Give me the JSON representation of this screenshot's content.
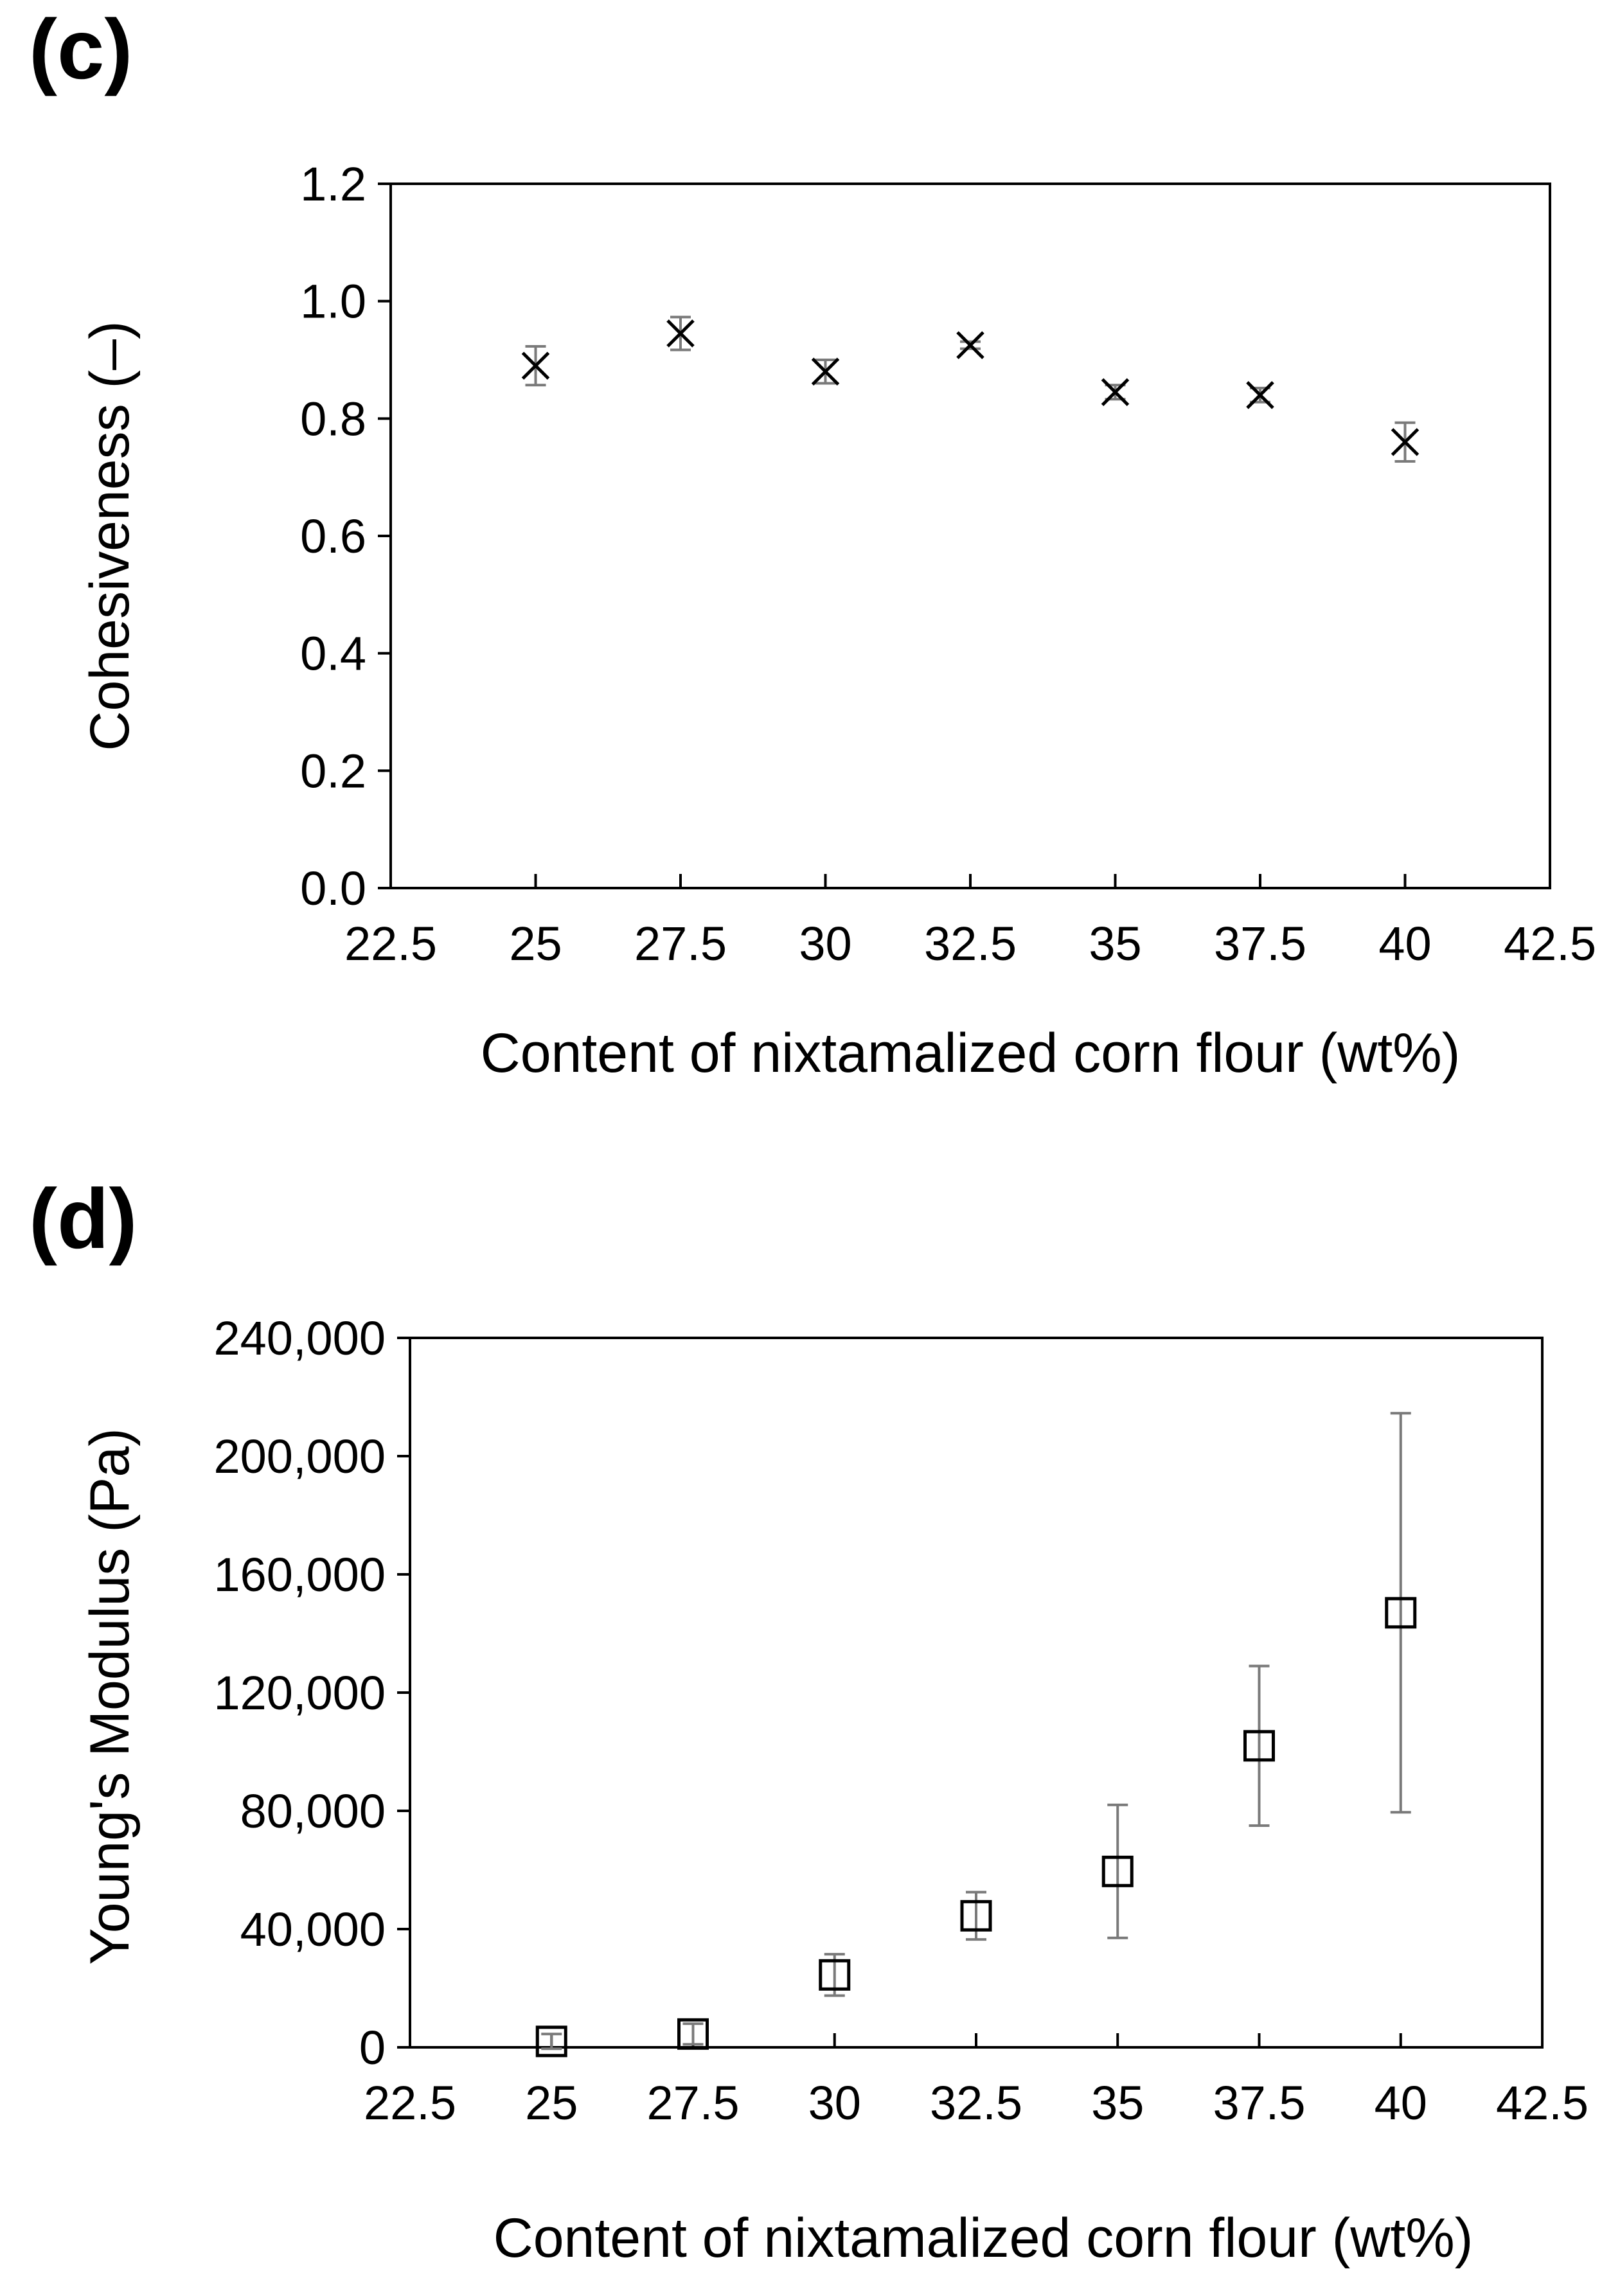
{
  "chart_data": [
    {
      "type": "scatter",
      "panel_label": "(c)",
      "xlabel": "Content of nixtamalized corn flour (wt%)",
      "ylabel": "Cohesiveness (–)",
      "xlim": [
        22.5,
        42.5
      ],
      "ylim": [
        0.0,
        1.2
      ],
      "x_ticks": [
        22.5,
        25,
        27.5,
        30,
        32.5,
        35,
        37.5,
        40,
        42.5
      ],
      "x_tick_labels": [
        "22.5",
        "25",
        "27.5",
        "30",
        "32.5",
        "35",
        "37.5",
        "40",
        "42.5"
      ],
      "y_ticks": [
        0.0,
        0.2,
        0.4,
        0.6,
        0.8,
        1.0,
        1.2
      ],
      "y_tick_labels": [
        "0.0",
        "0.2",
        "0.4",
        "0.6",
        "0.8",
        "1.0",
        "1.2"
      ],
      "marker": "x",
      "series": [
        {
          "name": "Cohesiveness",
          "x": [
            25,
            27.5,
            30,
            32.5,
            35,
            37.5,
            40
          ],
          "y": [
            0.89,
            0.945,
            0.88,
            0.925,
            0.845,
            0.84,
            0.76
          ],
          "error": [
            0.033,
            0.028,
            0.02,
            0.006,
            0.012,
            0.012,
            0.033
          ]
        }
      ]
    },
    {
      "type": "scatter",
      "panel_label": "(d)",
      "xlabel": "Content of nixtamalized corn flour (wt%)",
      "ylabel": "Young's Modulus (Pa)",
      "xlim": [
        22.5,
        42.5
      ],
      "ylim": [
        0,
        240000
      ],
      "x_ticks": [
        22.5,
        25,
        27.5,
        30,
        32.5,
        35,
        37.5,
        40,
        42.5
      ],
      "x_tick_labels": [
        "22.5",
        "25",
        "27.5",
        "30",
        "32.5",
        "35",
        "37.5",
        "40",
        "42.5"
      ],
      "y_ticks": [
        0,
        40000,
        80000,
        120000,
        160000,
        200000,
        240000
      ],
      "y_tick_labels": [
        "0",
        "40,000",
        "80,000",
        "120,000",
        "160,000",
        "200,000",
        "240,000"
      ],
      "marker": "square",
      "series": [
        {
          "name": "Young's Modulus",
          "x": [
            25,
            27.5,
            30,
            32.5,
            35,
            37.5,
            40
          ],
          "y": [
            2000,
            4500,
            24500,
            44500,
            59500,
            102000,
            147000
          ],
          "error": [
            2500,
            3500,
            7000,
            8000,
            22500,
            27000,
            67500
          ]
        }
      ]
    }
  ]
}
